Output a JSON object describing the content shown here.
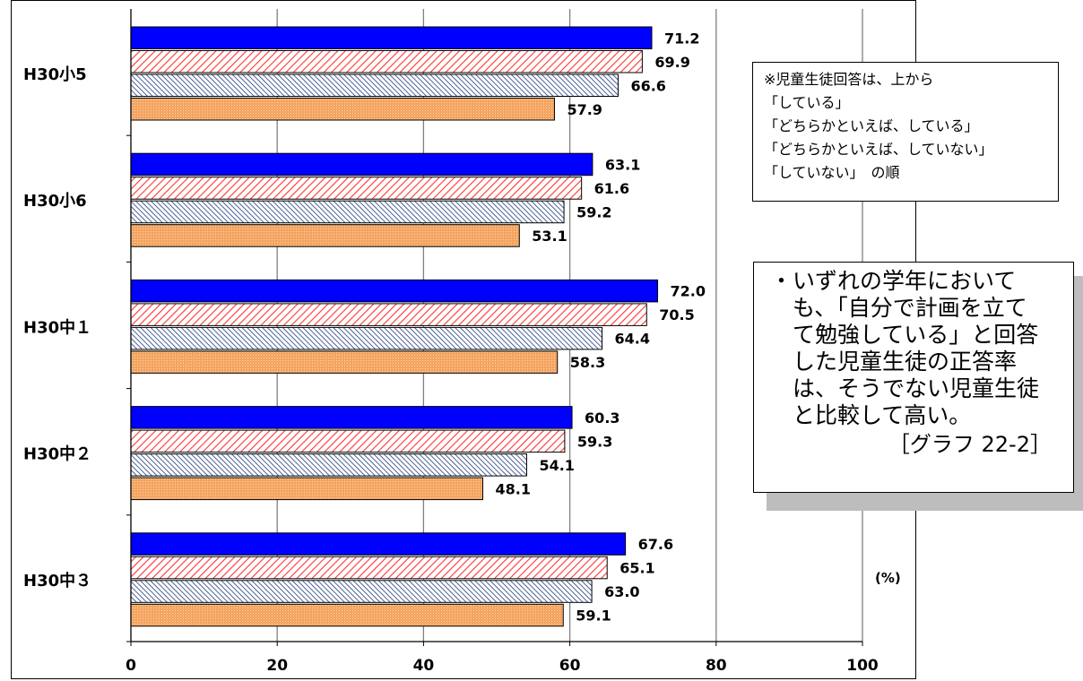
{
  "chart_data": {
    "type": "bar",
    "orientation": "horizontal",
    "categories": [
      "H30小5",
      "H30小6",
      "H30中１",
      "H30中２",
      "H30中３"
    ],
    "series": [
      {
        "name": "「している」",
        "values": [
          71.2,
          63.1,
          72.0,
          60.3,
          67.6
        ],
        "color": "#0000ff",
        "pattern": "solid"
      },
      {
        "name": "「どちらかといえば、している」",
        "values": [
          69.9,
          61.6,
          70.5,
          59.3,
          65.1
        ],
        "color": "#ff3333",
        "pattern": "diagonal-hatch"
      },
      {
        "name": "「どちらかといえば、していない」",
        "values": [
          66.6,
          59.2,
          64.4,
          54.1,
          63.0
        ],
        "color": "#1f3a7a",
        "pattern": "dense-diagonal-hatch"
      },
      {
        "name": "「していない」",
        "values": [
          57.9,
          53.1,
          58.3,
          48.1,
          59.1
        ],
        "color": "#f4a460",
        "pattern": "dotted"
      }
    ],
    "value_labels": [
      [
        "71.2",
        "63.1",
        "72.0",
        "60.3",
        "67.6"
      ],
      [
        "69.9",
        "61.6",
        "70.5",
        "59.3",
        "65.1"
      ],
      [
        "66.6",
        "59.2",
        "64.4",
        "54.1",
        "63.0"
      ],
      [
        "57.9",
        "53.1",
        "58.3",
        "48.1",
        "59.1"
      ]
    ],
    "xlim": [
      0,
      100
    ],
    "xticks": [
      "0",
      "20",
      "40",
      "60",
      "80",
      "100"
    ],
    "unit_label": "(%)",
    "grid": true,
    "legend": {
      "placement": "top-right",
      "lines": [
        "※児童生徒回答は、上から",
        "「している」",
        "「どちらかといえば、している」",
        "「どちらかといえば、していない」",
        "「していない」　の順"
      ]
    },
    "annotation": {
      "text": "・いずれの学年において\n　も、「自分で計画を立て\n　て勉強している」と回答\n　した児童生徒の正答率\n　は、そうでない児童生徒\n　と比較して高い。",
      "reference": "［グラフ 22-2］"
    }
  },
  "colors": {
    "series1": "#0000ff",
    "series2": "#ff3333",
    "series3": "#1f3a7a",
    "series4": "#f4a460",
    "grid": "#808080"
  }
}
